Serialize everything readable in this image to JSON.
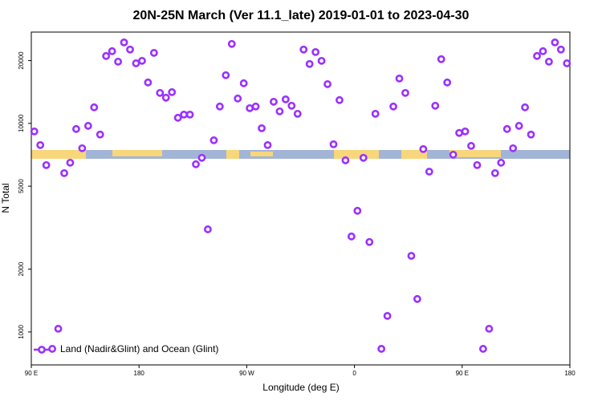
{
  "chart_data": {
    "type": "scatter",
    "title": "20N-25N March (Ver 11.1_late)   2019-01-01 to 2023-04-30",
    "x_label": "Longitude (deg E)",
    "y_label": "N Total",
    "log_y": true,
    "legend": "bottom-left",
    "xlim": [
      90,
      540
    ],
    "xticks": [
      {
        "value": 90,
        "label": "90 E"
      },
      {
        "value": 180,
        "label": "180"
      },
      {
        "value": 270,
        "label": "90 W"
      },
      {
        "value": 360,
        "label": "0"
      },
      {
        "value": 450,
        "label": "90 E"
      },
      {
        "value": 540,
        "label": "180"
      }
    ],
    "ylim": [
      695,
      27400
    ],
    "yticks": [
      1000,
      2000,
      5000,
      10000,
      20000
    ],
    "x": [
      92.5,
      97.5,
      102.5,
      107.5,
      112.5,
      117.5,
      122.5,
      127.5,
      132.5,
      137.5,
      142.5,
      147.5,
      152.5,
      157.5,
      162.5,
      167.5,
      172.5,
      177.5,
      182.5,
      187.5,
      192.5,
      197.5,
      202.5,
      207.5,
      212.5,
      217.5,
      222.5,
      227.5,
      232.5,
      237.5,
      242.5,
      247.5,
      252.5,
      257.5,
      262.5,
      267.5,
      272.5,
      277.5,
      282.5,
      287.5,
      292.5,
      297.5,
      302.5,
      307.5,
      312.5,
      317.5,
      322.5,
      327.5,
      332.5,
      337.5,
      342.5,
      347.5,
      352.5,
      357.5,
      362.5,
      367.5,
      372.5,
      377.5,
      382.5,
      387.5,
      392.5,
      397.5,
      402.5,
      407.5,
      412.5,
      417.5,
      422.5,
      427.5,
      432.5,
      437.5,
      442.5,
      447.5,
      452.5,
      457.5,
      462.5,
      467.5,
      472.5,
      477.5,
      482.5,
      487.5,
      492.5,
      497.5,
      502.5,
      507.5,
      512.5,
      517.5,
      522.5,
      527.5,
      532.5,
      537.5
    ],
    "series": [
      {
        "name": "Land (Nadir&Glint) and Ocean (Glint)",
        "color": "#9b30ff",
        "values": [
          9150,
          7870,
          6310,
          830,
          1036,
          5775,
          6480,
          9400,
          7600,
          9730,
          11940,
          8840,
          21040,
          22190,
          19770,
          24450,
          22600,
          19410,
          19950,
          15710,
          21780,
          14000,
          13280,
          14120,
          10640,
          11020,
          11020,
          6370,
          6840,
          3105,
          8300,
          12050,
          17020,
          24050,
          13160,
          15570,
          11830,
          12050,
          9480,
          7870,
          12700,
          11420,
          13040,
          12150,
          11120,
          22600,
          19270,
          21980,
          19950,
          15420,
          7940,
          12930,
          6650,
          2870,
          3810,
          6840,
          2700,
          11120,
          830,
          1194,
          12050,
          16410,
          14000,
          2317,
          1439,
          7530,
          5870,
          12150,
          20320,
          15710,
          7080,
          9000,
          9150,
          7800,
          6310,
          830,
          1036,
          5775,
          6480,
          9400,
          7600,
          9730,
          11940,
          8840,
          21040,
          22190,
          19770,
          24450,
          22600,
          19410
        ]
      }
    ]
  }
}
